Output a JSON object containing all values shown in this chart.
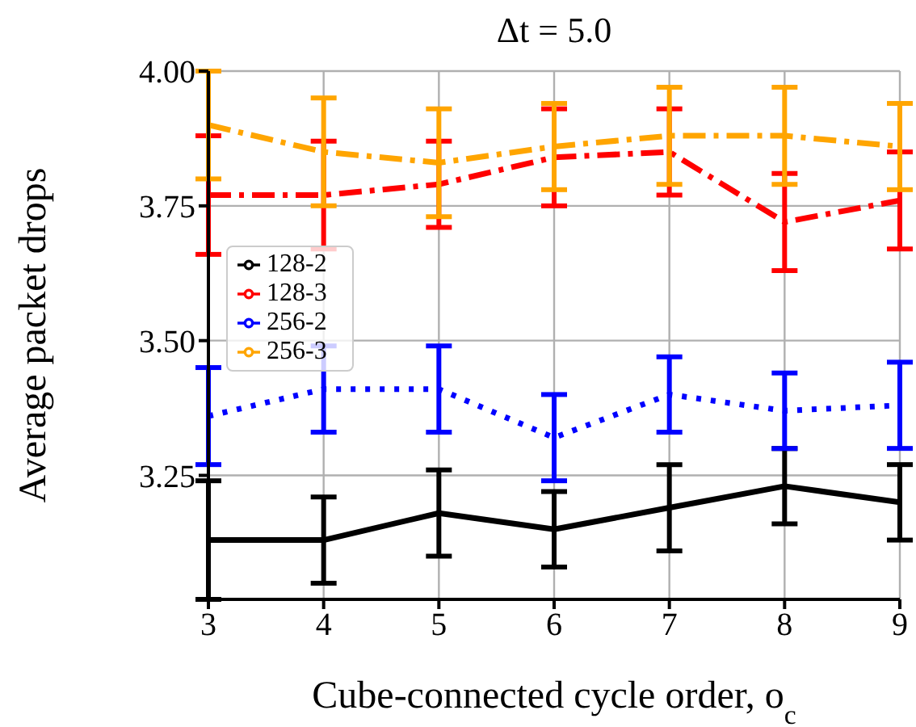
{
  "chart_data": {
    "type": "line",
    "title": "Δt = 5.0",
    "xlabel": "Cube-connected cycle order, o$_{c}$",
    "ylabel": "Average packet drops",
    "x": [
      3,
      4,
      5,
      6,
      7,
      8,
      9
    ],
    "series": [
      {
        "name": "128-2",
        "color": "#000000",
        "line_style": "solid",
        "values": [
          3.13,
          3.13,
          3.18,
          3.15,
          3.19,
          3.23,
          3.2
        ],
        "errors": [
          0.11,
          0.08,
          0.08,
          0.07,
          0.08,
          0.07,
          0.07
        ]
      },
      {
        "name": "128-3",
        "color": "#ff0000",
        "line_style": "dashed",
        "values": [
          3.77,
          3.77,
          3.79,
          3.84,
          3.85,
          3.72,
          3.76
        ],
        "errors": [
          0.11,
          0.1,
          0.08,
          0.09,
          0.08,
          0.09,
          0.09
        ]
      },
      {
        "name": "256-2",
        "color": "#0000ff",
        "line_style": "dotted",
        "values": [
          3.36,
          3.41,
          3.41,
          3.32,
          3.4,
          3.37,
          3.38
        ],
        "errors": [
          0.09,
          0.08,
          0.08,
          0.08,
          0.07,
          0.07,
          0.08
        ]
      },
      {
        "name": "256-3",
        "color": "#ffa500",
        "line_style": "dashed",
        "values": [
          3.9,
          3.85,
          3.83,
          3.86,
          3.88,
          3.88,
          3.86
        ],
        "errors": [
          0.1,
          0.1,
          0.1,
          0.08,
          0.09,
          0.09,
          0.08
        ]
      }
    ],
    "xlim": [
      3,
      9
    ],
    "xticks": [
      3,
      4,
      5,
      6,
      7,
      8,
      9
    ],
    "ylim": [
      3.02,
      4.0
    ],
    "yticks": [
      {
        "value": 3.25,
        "label": "3.25"
      },
      {
        "value": 3.5,
        "label": "3.50"
      },
      {
        "value": 3.75,
        "label": "3.75"
      },
      {
        "value": 4.0,
        "label": "4.00"
      }
    ],
    "grid": true,
    "legend": "left"
  }
}
